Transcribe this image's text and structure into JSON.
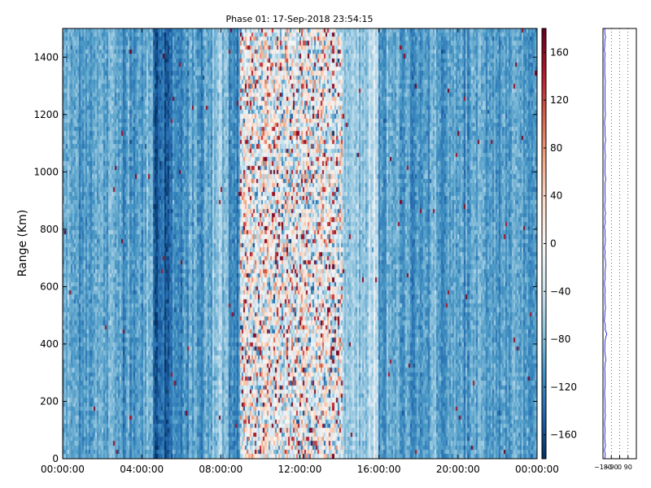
{
  "chart_data": [
    {
      "type": "heatmap",
      "title": "Phase 01: 17-Sep-2018 23:54:15",
      "xlabel": "",
      "ylabel": "Range (Km)",
      "x_ticks": [
        "00:00:00",
        "04:00:00",
        "08:00:00",
        "12:00:00",
        "16:00:00",
        "20:00:00",
        "00:00:00"
      ],
      "x_tick_hours": [
        0,
        4,
        8,
        12,
        16,
        20,
        24
      ],
      "xlim_hours": [
        0,
        24
      ],
      "y_ticks": [
        0,
        200,
        400,
        600,
        800,
        1000,
        1200,
        1400
      ],
      "ylim": [
        0,
        1500
      ],
      "colormap": "RdBu_r",
      "clim": [
        -180,
        180
      ],
      "colorbar_ticks": [
        160,
        120,
        80,
        40,
        0,
        -40,
        -80,
        -120,
        -160
      ],
      "column_profile_deg": [
        {
          "hour_start": 0,
          "hour_end": 4.6,
          "phase": -95
        },
        {
          "hour_start": 4.6,
          "hour_end": 5.6,
          "phase": -145
        },
        {
          "hour_start": 5.6,
          "hour_end": 7.6,
          "phase": -105
        },
        {
          "hour_start": 7.6,
          "hour_end": 8.4,
          "phase": -65
        },
        {
          "hour_start": 8.4,
          "hour_end": 9.0,
          "phase": -110
        },
        {
          "hour_start": 9.0,
          "hour_end": 14.2,
          "phase": -15
        },
        {
          "hour_start": 14.2,
          "hour_end": 15.5,
          "phase": -75
        },
        {
          "hour_start": 15.5,
          "hour_end": 16.0,
          "phase": -45
        },
        {
          "hour_start": 16.0,
          "hour_end": 24,
          "phase": -100
        }
      ]
    },
    {
      "type": "line",
      "title": "",
      "xlabel": "",
      "ylabel": "",
      "x_ticks": [
        "−180",
        "−90",
        "0",
        "90"
      ],
      "x_tick_values": [
        -180,
        -90,
        0,
        90
      ],
      "xlim": [
        -180,
        180
      ],
      "ylim": [
        0,
        1500
      ],
      "grid": "dotted vertical",
      "line_color": "#0000cc",
      "series": [
        {
          "mean_phase": -158,
          "range_step_km": 15
        }
      ]
    }
  ]
}
